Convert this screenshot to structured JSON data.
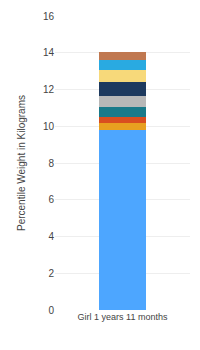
{
  "chart_data": {
    "type": "bar",
    "categories": [
      "Girl 1 years 11 months"
    ],
    "series": [
      {
        "color": "#4da6ff",
        "values": [
          9.8
        ]
      },
      {
        "color": "#e8a020",
        "values": [
          0.35
        ]
      },
      {
        "color": "#d94e1f",
        "values": [
          0.35
        ]
      },
      {
        "color": "#1a7a8a",
        "values": [
          0.55
        ]
      },
      {
        "color": "#b8b8b8",
        "values": [
          0.6
        ]
      },
      {
        "color": "#1e3a5f",
        "values": [
          0.75
        ]
      },
      {
        "color": "#f7d97a",
        "values": [
          0.65
        ]
      },
      {
        "color": "#29aae1",
        "values": [
          0.55
        ]
      },
      {
        "color": "#c07850",
        "values": [
          0.45
        ]
      }
    ],
    "stacked": true,
    "ylabel": "Percentile Weight in Kilograms",
    "ylim": [
      0,
      16
    ],
    "yticks": [
      0,
      2,
      4,
      6,
      8,
      10,
      12,
      14,
      16
    ],
    "grid": true
  }
}
